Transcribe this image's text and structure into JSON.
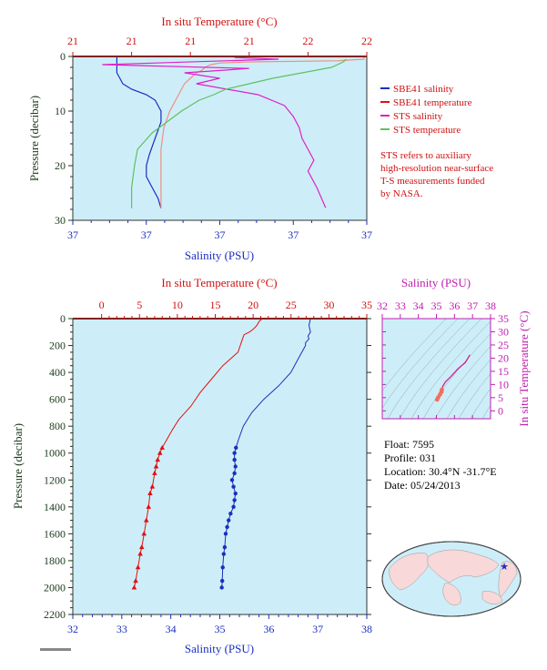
{
  "colors": {
    "salinity": "#1a2fbf",
    "temperature": "#e01010",
    "sts_salinity": "#e020c8",
    "sts_temperature": "#60c060",
    "sts_temp_light": "#f09080",
    "plot_bg": "#cdeef8",
    "axis_pressure": "#1a3a1a",
    "axis_blue": "#1a2fbf",
    "axis_red": "#d01010",
    "axis_magenta": "#c020b0",
    "ts_curve": "#d02090",
    "ts_points": "#f07060",
    "map_land": "#f8d8d8",
    "map_ocean": "#cdeef8",
    "star": "#1a2fbf"
  },
  "legend": {
    "items": [
      {
        "label": "SBE41 salinity",
        "color": "#1a2fbf"
      },
      {
        "label": "SBE41 temperature",
        "color": "#e01010"
      },
      {
        "label": "STS salinity",
        "color": "#e020c8"
      },
      {
        "label": "STS temperature",
        "color": "#60c060"
      }
    ],
    "note": [
      "STS refers to auxiliary",
      "high-resolution near-surface",
      "T-S measurements funded",
      "by NASA."
    ]
  },
  "info": {
    "float": "Float: 7595",
    "profile": "Profile: 031",
    "location": "Location: 30.4°N -31.7°E",
    "date": "Date: 05/24/2013"
  },
  "chart_data": [
    {
      "id": "near-surface",
      "type": "line",
      "top_label": "In situ Temperature (°C)",
      "xlabel": "Salinity (PSU)",
      "ylabel": "Pressure (decibar)",
      "top_ticks": [
        "21",
        "21",
        "21",
        "21",
        "22",
        "22"
      ],
      "bottom_ticks": [
        "37",
        "37",
        "37",
        "37",
        "37"
      ],
      "yticks": [
        "0",
        "10",
        "20",
        "30"
      ],
      "ylim": [
        0,
        30
      ],
      "series": [
        {
          "name": "SBE41 salinity",
          "axis": "salinity",
          "x_frac": [
            0.15,
            0.15,
            0.15,
            0.16,
            0.17,
            0.2,
            0.25,
            0.28,
            0.3,
            0.3,
            0.28,
            0.26,
            0.25,
            0.25,
            0.27,
            0.29,
            0.3
          ],
          "y": [
            0,
            2,
            3,
            4,
            5,
            6,
            7,
            8,
            10,
            12,
            15,
            18,
            20,
            22,
            24,
            26,
            27.8
          ]
        },
        {
          "name": "SBE41 temperature",
          "axis": "temperature",
          "x_frac": [
            0.99,
            0.99,
            0.9,
            0.6,
            0.5,
            0.47,
            0.45,
            0.44,
            0.42,
            0.41,
            0.4,
            0.38,
            0.33,
            0.31,
            0.3,
            0.3,
            0.3
          ],
          "y": [
            0,
            0.5,
            0.8,
            1,
            1.2,
            1.5,
            2,
            2.5,
            3,
            3.5,
            4,
            5,
            10,
            13,
            17,
            21,
            27.8
          ]
        },
        {
          "name": "STS salinity",
          "axis": "salinity",
          "x_frac": [
            0.55,
            0.7,
            0.1,
            0.6,
            0.38,
            0.5,
            0.42,
            0.63,
            0.72,
            0.75,
            0.77,
            0.78,
            0.8,
            0.82,
            0.8,
            0.83,
            0.86
          ],
          "y": [
            0.2,
            0.5,
            1.5,
            2.2,
            3,
            4,
            5,
            7,
            9,
            11,
            13,
            15,
            17,
            19,
            21,
            24,
            27.7
          ]
        },
        {
          "name": "STS temperature",
          "axis": "temperature",
          "x_frac": [
            0.93,
            0.92,
            0.88,
            0.78,
            0.68,
            0.6,
            0.52,
            0.48,
            0.43,
            0.37,
            0.27,
            0.22,
            0.21,
            0.2,
            0.2
          ],
          "y": [
            0.5,
            1,
            2,
            3,
            4,
            5,
            6,
            7,
            8,
            10,
            14,
            17,
            20,
            24,
            27.8
          ]
        }
      ]
    },
    {
      "id": "full-profile",
      "type": "line",
      "top_label": "In situ Temperature (°C)",
      "xlabel": "Salinity (PSU)",
      "ylabel": "Pressure (decibar)",
      "salinity_lim": [
        32,
        38
      ],
      "temperature_lim": [
        -3.8,
        35
      ],
      "pressure_lim": [
        0,
        2200
      ],
      "salinity_ticks": [
        32,
        33,
        34,
        35,
        36,
        37,
        38
      ],
      "temperature_ticks": [
        0,
        5,
        10,
        15,
        20,
        25,
        30,
        35
      ],
      "pressure_ticks": [
        0,
        200,
        400,
        600,
        800,
        1000,
        1200,
        1400,
        1600,
        1800,
        2000,
        2200
      ],
      "series": [
        {
          "name": "SBE41 temperature",
          "axis": "temperature",
          "x": [
            21.2,
            20.8,
            20.5,
            20.0,
            19.5,
            18.8,
            18.6,
            18.3,
            18.0,
            17.0,
            16.0,
            14.5,
            13.0,
            11.8,
            11.0,
            10.2,
            9.3,
            8.6,
            8.0,
            7.7,
            7.4,
            7.2,
            7.0,
            6.7,
            6.4,
            6.2,
            5.9,
            5.6,
            5.3,
            5.1,
            4.8,
            4.5,
            4.3
          ],
          "y": [
            0,
            20,
            50,
            80,
            100,
            120,
            150,
            200,
            250,
            300,
            350,
            450,
            550,
            650,
            700,
            750,
            830,
            900,
            960,
            1000,
            1050,
            1100,
            1150,
            1250,
            1300,
            1400,
            1500,
            1600,
            1700,
            1750,
            1850,
            1950,
            2000
          ]
        },
        {
          "name": "SBE41 salinity",
          "axis": "salinity",
          "x": [
            36.85,
            36.82,
            36.85,
            36.8,
            36.82,
            36.75,
            36.75,
            36.6,
            36.45,
            36.2,
            35.9,
            35.65,
            35.48,
            35.38,
            35.33,
            35.3,
            35.3,
            35.32,
            35.3,
            35.25,
            35.28,
            35.32,
            35.3,
            35.28,
            35.22,
            35.18,
            35.15,
            35.12,
            35.1,
            35.08,
            35.06,
            35.05,
            35.04
          ],
          "y": [
            0,
            50,
            100,
            130,
            150,
            180,
            200,
            300,
            400,
            500,
            600,
            700,
            800,
            900,
            960,
            1000,
            1050,
            1100,
            1150,
            1200,
            1250,
            1300,
            1350,
            1400,
            1450,
            1500,
            1550,
            1600,
            1700,
            1750,
            1850,
            1950,
            2000
          ]
        }
      ]
    },
    {
      "id": "ts-diagram",
      "type": "scatter",
      "top_label": "Salinity (PSU)",
      "ylabel": "In situ Temperature (°C)",
      "xlim": [
        32,
        38
      ],
      "ylim": [
        -3,
        35
      ],
      "xticks": [
        32,
        33,
        34,
        35,
        36,
        37,
        38
      ],
      "yticks": [
        0,
        5,
        10,
        15,
        20,
        25,
        30,
        35
      ],
      "series": [
        {
          "name": "T-S profile",
          "x": [
            36.85,
            36.75,
            36.6,
            36.2,
            35.8,
            35.5,
            35.35,
            35.3,
            35.28,
            35.2,
            35.1,
            35.04
          ],
          "y": [
            21.2,
            20.0,
            18.3,
            16.0,
            13.0,
            11.0,
            9.3,
            8.0,
            7.2,
            6.2,
            5.1,
            4.3
          ]
        }
      ]
    }
  ]
}
